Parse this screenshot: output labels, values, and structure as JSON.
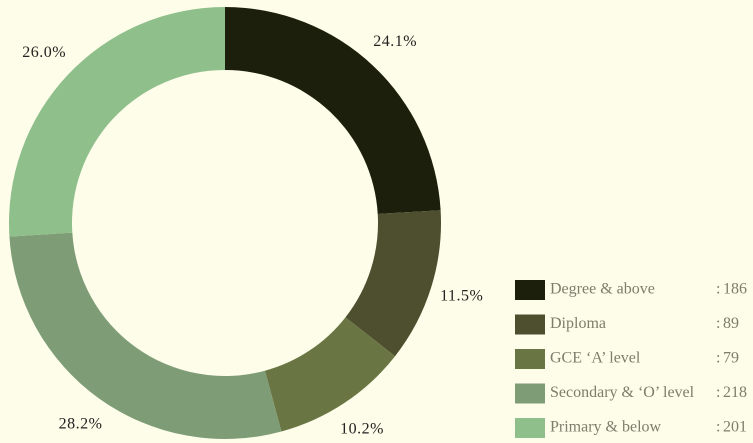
{
  "chart_data": {
    "type": "donut",
    "categories": [
      "Degree & above",
      "Diploma",
      "GCE ‘A’ level",
      "Secondary & ‘O’ level",
      "Primary & below"
    ],
    "values": [
      186,
      89,
      79,
      218,
      201
    ],
    "legend_separator": ":",
    "percentages": [
      24.1,
      11.5,
      10.2,
      28.2,
      26.0
    ],
    "percentage_labels": [
      "24.1%",
      "11.5%",
      "10.2%",
      "28.2%",
      "26.0%"
    ],
    "colors": [
      "#1c1f0c",
      "#4e4f2f",
      "#6a7544",
      "#7e9c76",
      "#8fbf8a"
    ]
  }
}
